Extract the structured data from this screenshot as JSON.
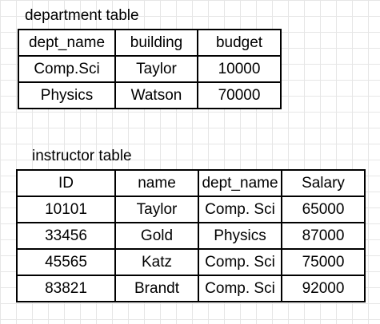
{
  "department": {
    "caption": "department table",
    "headers": [
      "dept_name",
      "building",
      "budget"
    ],
    "rows": [
      [
        "Comp.Sci",
        "Taylor",
        "10000"
      ],
      [
        "Physics",
        "Watson",
        "70000"
      ]
    ]
  },
  "instructor": {
    "caption": "instructor table",
    "headers": [
      "ID",
      "name",
      "dept_name",
      "Salary"
    ],
    "rows": [
      [
        "10101",
        "Taylor",
        "Comp. Sci",
        "65000"
      ],
      [
        "33456",
        "Gold",
        "Physics",
        "87000"
      ],
      [
        "45565",
        "Katz",
        "Comp. Sci",
        "75000"
      ],
      [
        "83821",
        "Brandt",
        "Comp. Sci",
        "92000"
      ]
    ]
  }
}
